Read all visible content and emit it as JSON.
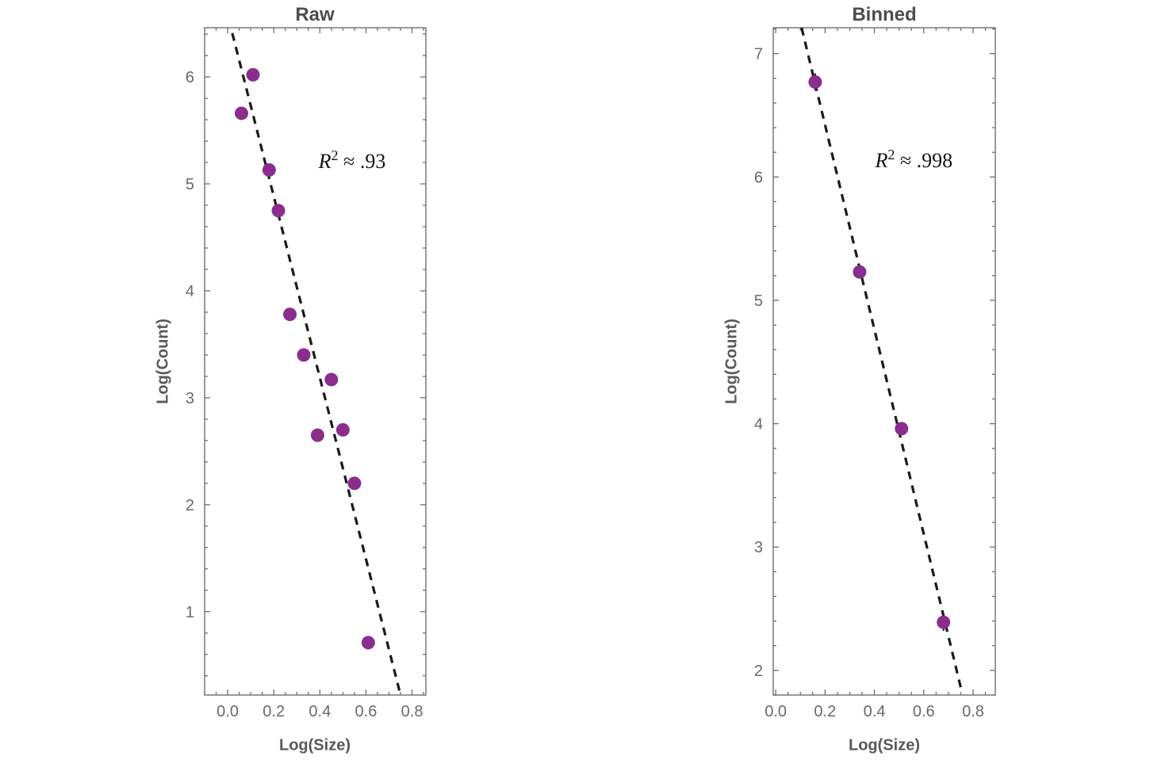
{
  "colors": {
    "point": "#8b2d8f",
    "line": "#1a1a1a",
    "frame": "#6e6e6e",
    "tick_label": "#696969",
    "title": "#4d4d4d",
    "axis_label": "#595959"
  },
  "chart_data": [
    {
      "type": "scatter",
      "title": "Raw",
      "xlabel": "Log(Size)",
      "ylabel": "Log(Count)",
      "annotation": {
        "base": "R",
        "sup": "2",
        "rest": " ≈ .93",
        "x": 0.54,
        "y": 5.15
      },
      "xlim": [
        -0.1,
        0.86
      ],
      "ylim": [
        0.22,
        6.46
      ],
      "xticks": [
        0.0,
        0.2,
        0.4,
        0.6,
        0.8
      ],
      "xtick_labels": [
        "0.0",
        "0.2",
        "0.4",
        "0.6",
        "0.8"
      ],
      "yticks": [
        1,
        2,
        3,
        4,
        5,
        6
      ],
      "ytick_labels": [
        "1",
        "2",
        "3",
        "4",
        "5",
        "6"
      ],
      "xminor_step": 0.05,
      "yminor_step": 0.2,
      "points": [
        {
          "x": 0.06,
          "y": 5.66
        },
        {
          "x": 0.11,
          "y": 6.02
        },
        {
          "x": 0.18,
          "y": 5.13
        },
        {
          "x": 0.22,
          "y": 4.75
        },
        {
          "x": 0.27,
          "y": 3.78
        },
        {
          "x": 0.33,
          "y": 3.4
        },
        {
          "x": 0.39,
          "y": 2.65
        },
        {
          "x": 0.45,
          "y": 3.17
        },
        {
          "x": 0.5,
          "y": 2.7
        },
        {
          "x": 0.55,
          "y": 2.2
        },
        {
          "x": 0.61,
          "y": 0.71
        }
      ],
      "fit_line": {
        "x1": 0.02,
        "y1": 6.41,
        "x2": 0.75,
        "y2": 0.22
      }
    },
    {
      "type": "scatter",
      "title": "Binned",
      "xlabel": "Log(Size)",
      "ylabel": "Log(Count)",
      "annotation": {
        "base": "R",
        "sup": "2",
        "rest": " ≈ .998",
        "x": 0.56,
        "y": 6.08
      },
      "xlim": [
        -0.01,
        0.89
      ],
      "ylim": [
        1.8,
        7.21
      ],
      "xticks": [
        0.0,
        0.2,
        0.4,
        0.6,
        0.8
      ],
      "xtick_labels": [
        "0.0",
        "0.2",
        "0.4",
        "0.6",
        "0.8"
      ],
      "yticks": [
        2,
        3,
        4,
        5,
        6,
        7
      ],
      "ytick_labels": [
        "2",
        "3",
        "4",
        "5",
        "6",
        "7"
      ],
      "xminor_step": 0.05,
      "yminor_step": 0.2,
      "points": [
        {
          "x": 0.16,
          "y": 6.77,
          "err": 0.07
        },
        {
          "x": 0.34,
          "y": 5.23,
          "err": 0.05
        },
        {
          "x": 0.51,
          "y": 3.96,
          "err": 0.05
        },
        {
          "x": 0.68,
          "y": 2.39,
          "err": 0.07
        }
      ],
      "fit_line": {
        "x1": 0.105,
        "y1": 7.21,
        "x2": 0.755,
        "y2": 1.82
      }
    }
  ]
}
